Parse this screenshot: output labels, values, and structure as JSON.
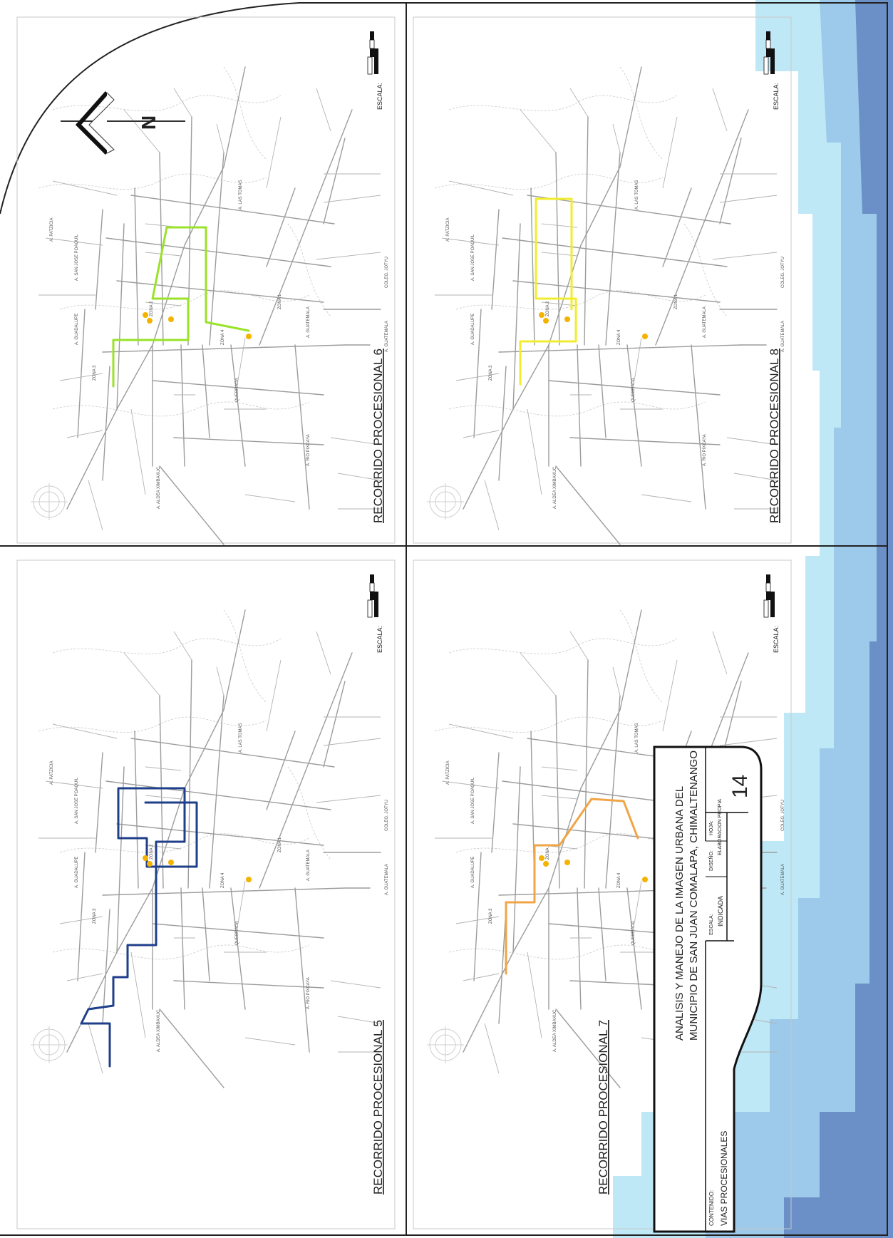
{
  "panels": [
    {
      "id": "p5",
      "title": "RECORRIDO PROCESIONAL 5",
      "scale_label": "ESCALA:",
      "route_color": "#1f3f8a"
    },
    {
      "id": "p6",
      "title": "RECORRIDO PROCESIONAL 6",
      "scale_label": "ESCALA:",
      "route_color": "#9be22a"
    },
    {
      "id": "p7",
      "title": "RECORRIDO PROCESIONAL 7",
      "scale_label": "ESCALA:",
      "route_color": "#f0a546"
    },
    {
      "id": "p8",
      "title": "RECORRIDO PROCESIONAL 8",
      "scale_label": "ESCALA:",
      "route_color": "#f2ec2f"
    }
  ],
  "north_arrow": {
    "letter": "N"
  },
  "title_block": {
    "project_line1": "ANALISIS Y MANEJO DE LA IMAGEN URBANA DEL",
    "project_line2": "MUNICIPIO DE SAN JUAN COMALAPA, CHIMALTENANGO",
    "content_label": "CONTENIDO:",
    "content_value": "VIAS PROCESIONALES",
    "scale_label": "ESCALA:",
    "scale_value": "INDICADA",
    "design_label": "DISEÑO:",
    "design_value": "ELABORACION PROPIA",
    "sheet_label": "HOJA:",
    "sheet_number": "14"
  },
  "colors": {
    "water_light": "#bfe8f7",
    "water_mid": "#9dc9ea",
    "water_dark": "#6b8fc7",
    "point": "#f5b300"
  }
}
